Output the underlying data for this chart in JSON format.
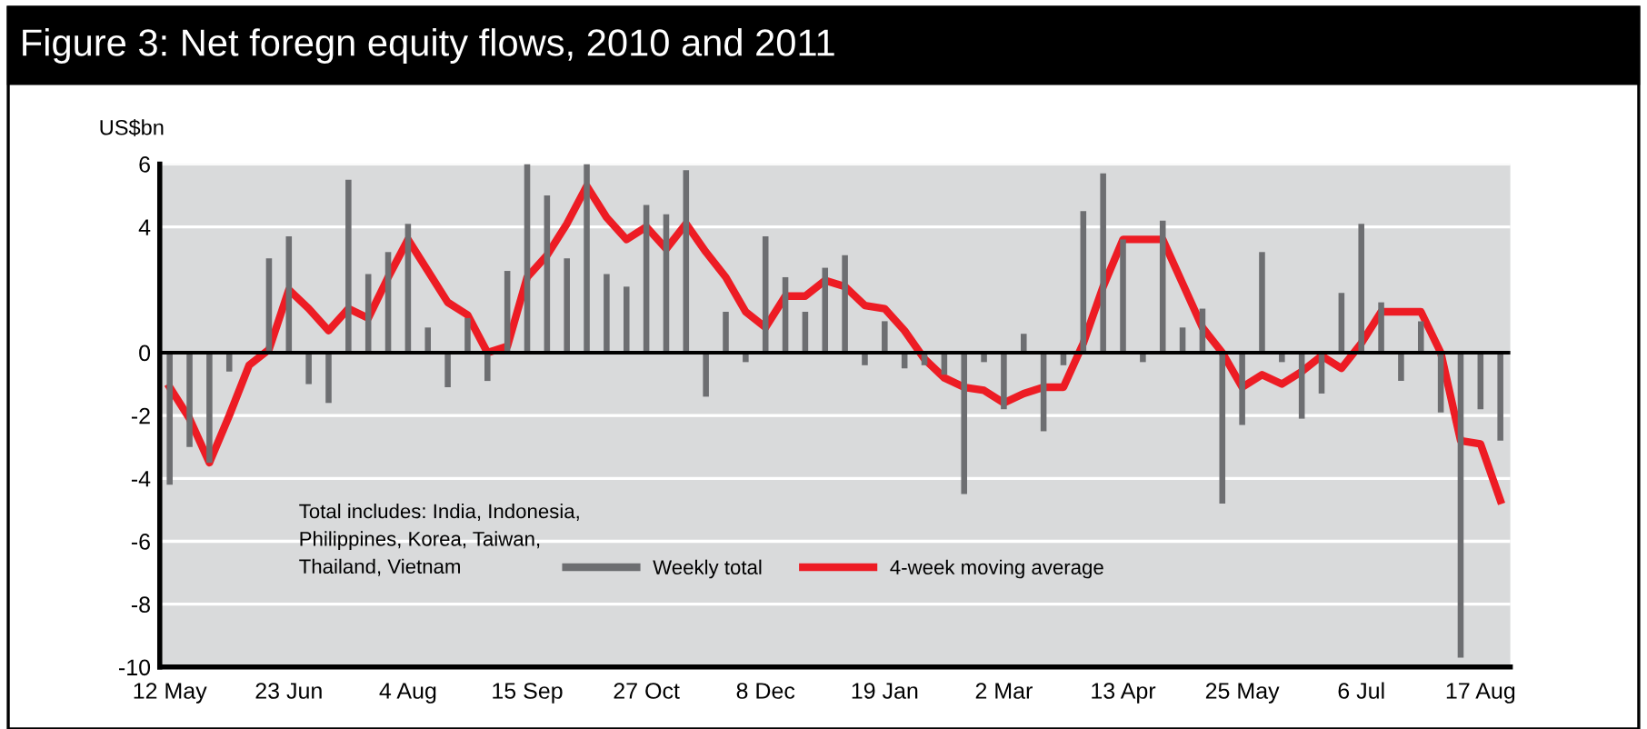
{
  "chart_data": {
    "type": "bar",
    "title": "Figure 3: Net foregn equity flows, 2010 and 2011",
    "ylabel": "US$bn",
    "annotations": [
      "Total includes: India, Indonesia,\nPhilippines, Korea, Taiwan,\nThailand, Vietnam"
    ],
    "categories": [
      "12 May",
      null,
      null,
      null,
      null,
      null,
      "23 Jun",
      null,
      null,
      null,
      null,
      null,
      "4 Aug",
      null,
      null,
      null,
      null,
      null,
      "15 Sep",
      null,
      null,
      null,
      null,
      null,
      "27 Oct",
      null,
      null,
      null,
      null,
      null,
      "8 Dec",
      null,
      null,
      null,
      null,
      null,
      "19 Jan",
      null,
      null,
      null,
      null,
      null,
      "2 Mar",
      null,
      null,
      null,
      null,
      null,
      "13 Apr",
      null,
      null,
      null,
      null,
      null,
      "25 May",
      null,
      null,
      null,
      null,
      null,
      "6 Jul",
      null,
      null,
      null,
      null,
      null,
      "17 Aug",
      null
    ],
    "series": [
      {
        "name": "Weekly total",
        "color": "#6d6e71",
        "values": [
          -4.2,
          -3.0,
          -3.5,
          -0.6,
          null,
          3.0,
          3.7,
          -1.0,
          -1.6,
          5.5,
          2.5,
          3.2,
          4.1,
          0.8,
          -1.1,
          1.1,
          -0.9,
          2.6,
          6.0,
          5.0,
          3.0,
          6.0,
          2.5,
          2.1,
          4.7,
          4.4,
          5.8,
          -1.4,
          1.3,
          -0.3,
          3.7,
          2.4,
          1.3,
          2.7,
          3.1,
          -0.4,
          1.0,
          -0.5,
          -0.4,
          -0.7,
          -4.5,
          -0.3,
          -1.8,
          0.6,
          -2.5,
          -0.4,
          4.5,
          5.7,
          3.6,
          -0.3,
          4.2,
          0.8,
          1.4,
          -4.8,
          -2.3,
          3.2,
          -0.3,
          -2.1,
          -1.3,
          1.9,
          4.1,
          1.6,
          -0.9,
          1.0,
          -1.9,
          -9.7,
          -1.8,
          -2.8
        ]
      },
      {
        "name": "4-week moving average",
        "type": "line",
        "color": "#ed1c24",
        "values": [
          -1.1,
          -2.1,
          -3.5,
          -2.0,
          -0.4,
          0.1,
          2.0,
          1.4,
          0.7,
          1.4,
          1.1,
          2.4,
          3.6,
          2.6,
          1.6,
          1.2,
          0.0,
          0.2,
          2.4,
          3.1,
          4.1,
          5.3,
          4.3,
          3.6,
          4.0,
          3.3,
          4.1,
          3.2,
          2.4,
          1.3,
          0.8,
          1.8,
          1.8,
          2.3,
          2.1,
          1.5,
          1.4,
          0.7,
          -0.2,
          -0.8,
          -1.1,
          -1.2,
          -1.6,
          -1.3,
          -1.1,
          -1.1,
          0.3,
          2.1,
          3.6,
          3.6,
          3.6,
          2.2,
          0.8,
          0.0,
          -1.1,
          -0.7,
          -1.0,
          -0.6,
          -0.1,
          -0.5,
          0.3,
          1.3,
          1.3,
          1.3,
          0.0,
          -2.8,
          -2.9,
          -4.7
        ]
      }
    ],
    "ylim": [
      -10,
      6
    ],
    "yticks": [
      6,
      4,
      0,
      -2,
      -4,
      -6,
      -8,
      -10
    ],
    "grid": "y",
    "legend": "bottom"
  }
}
